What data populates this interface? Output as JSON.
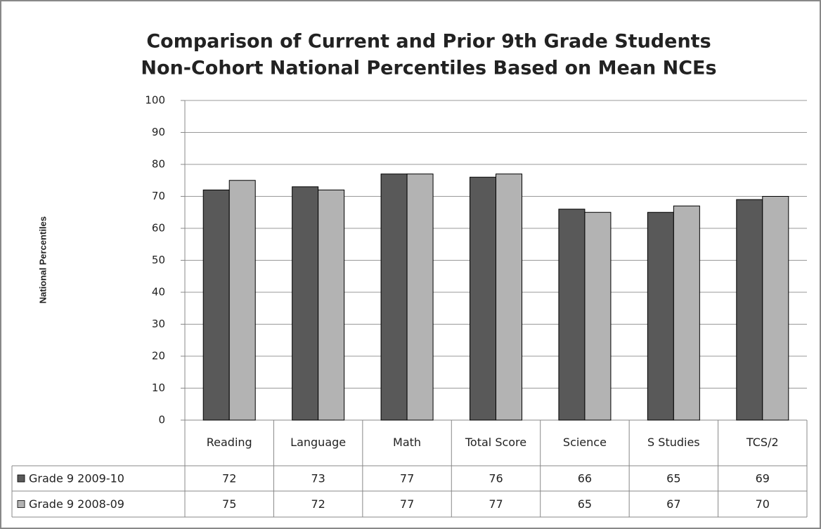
{
  "chart_data": {
    "type": "bar",
    "title": [
      "Comparison of Current and Prior 9th Grade Students",
      "Non-Cohort National Percentiles Based on Mean NCEs"
    ],
    "y_label": "National Percentiles",
    "categories": [
      "Reading",
      "Language",
      "Math",
      "Total Score",
      "Science",
      "S Studies",
      "TCS/2"
    ],
    "series": [
      {
        "name": "Grade 9 2009-10",
        "color": "#595959",
        "values": [
          72,
          73,
          77,
          76,
          66,
          65,
          69
        ]
      },
      {
        "name": "Grade 9 2008-09",
        "color": "#b3b3b3",
        "values": [
          75,
          72,
          77,
          77,
          65,
          67,
          70
        ]
      }
    ],
    "ylim": [
      0,
      100
    ],
    "yticks": [
      0,
      10,
      20,
      30,
      40,
      50,
      60,
      70,
      80,
      90,
      100
    ],
    "grid": true
  }
}
